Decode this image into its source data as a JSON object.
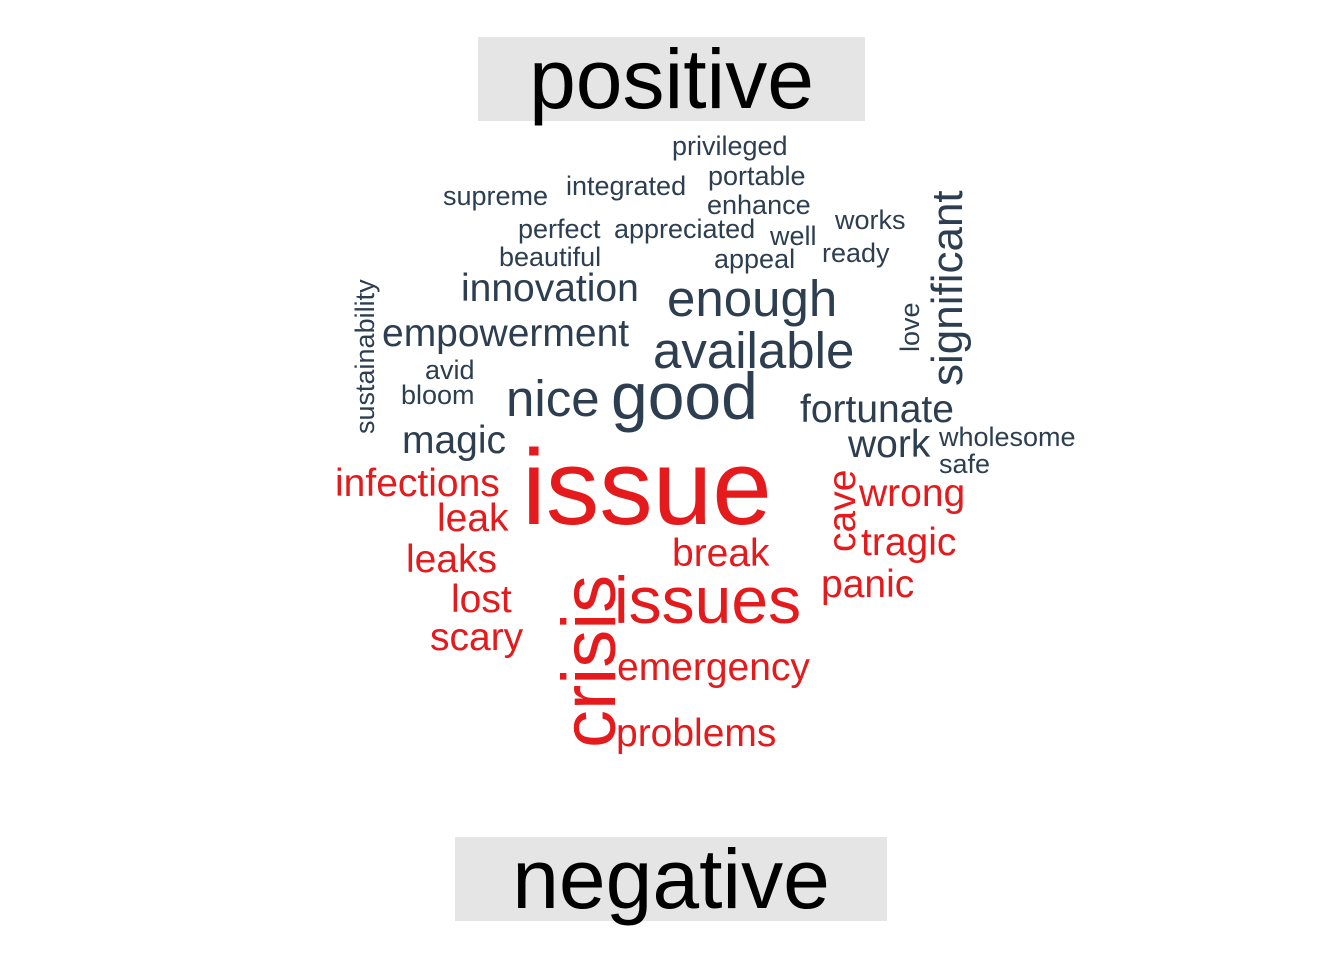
{
  "groups": {
    "positive": {
      "label": "positive",
      "color": "#2c3e50",
      "words": [
        "privileged",
        "integrated",
        "portable",
        "supreme",
        "enhance",
        "works",
        "perfect",
        "appreciated",
        "well",
        "ready",
        "beautiful",
        "appeal",
        "significant",
        "sustainability",
        "innovation",
        "enough",
        "love",
        "empowerment",
        "available",
        "avid",
        "bloom",
        "nice",
        "good",
        "fortunate",
        "magic",
        "work",
        "wholesome",
        "safe"
      ]
    },
    "negative": {
      "label": "negative",
      "color": "#e41a1c",
      "words": [
        "issue",
        "infections",
        "cave",
        "wrong",
        "leak",
        "crisis",
        "break",
        "tragic",
        "leaks",
        "panic",
        "lost",
        "issues",
        "scary",
        "emergency",
        "problems"
      ]
    }
  }
}
